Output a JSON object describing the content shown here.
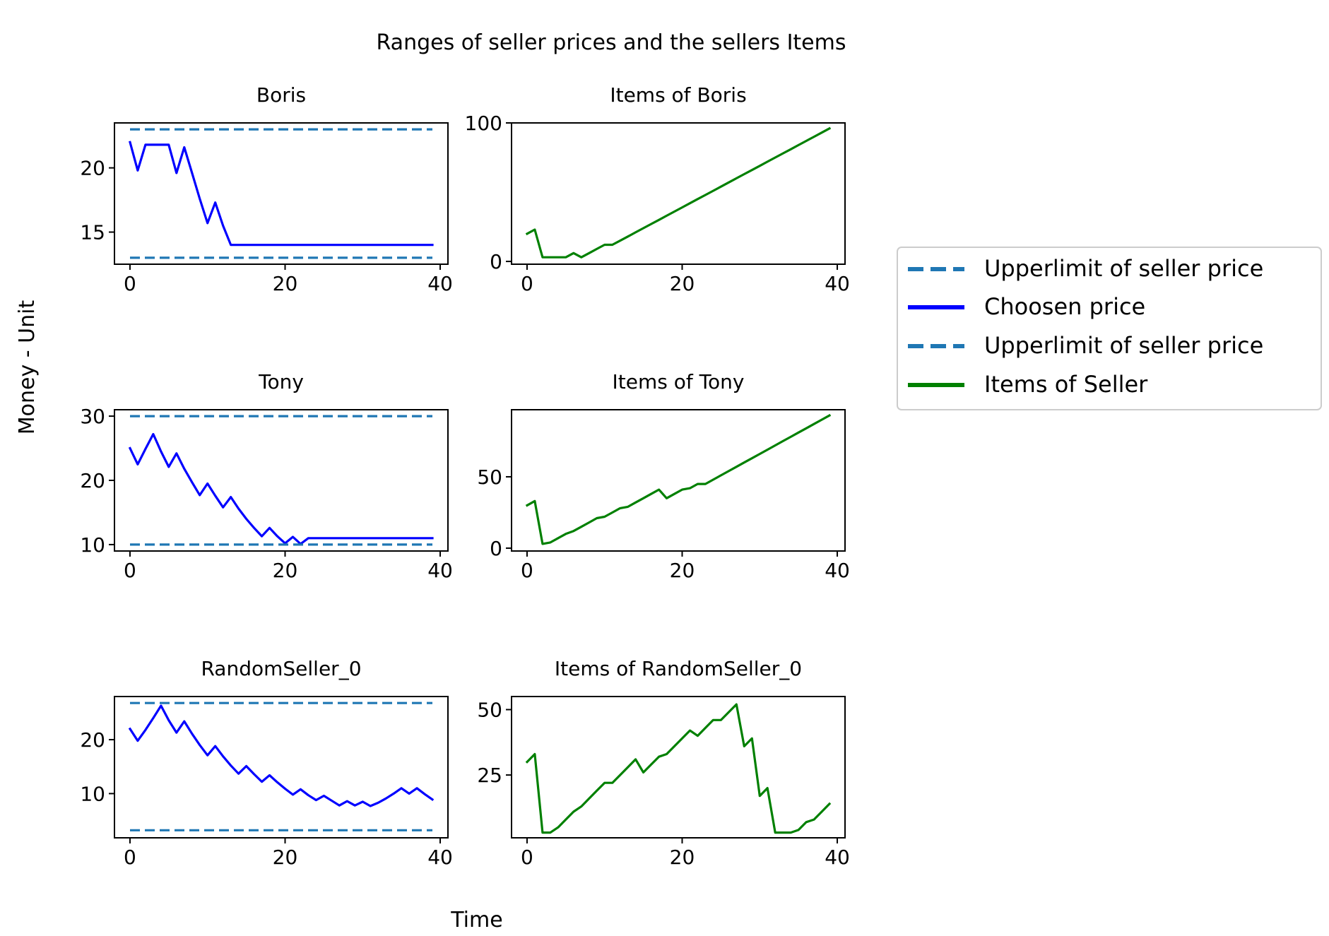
{
  "figure": {
    "title": "Ranges of seller prices and the sellers Items",
    "xlabel": "Time",
    "ylabel": "Money - Unit"
  },
  "legend": {
    "placement": "right",
    "entries": [
      {
        "label": "Upperlimit of seller price",
        "color": "#1f77b4",
        "style": "dashed"
      },
      {
        "label": "Choosen price",
        "color": "#0000ff",
        "style": "solid"
      },
      {
        "label": "Upperlimit of seller price",
        "color": "#1f77b4",
        "style": "dashed"
      },
      {
        "label": "Items of Seller",
        "color": "#008000",
        "style": "solid"
      }
    ]
  },
  "chart_data": [
    {
      "type": "line",
      "title": "Boris",
      "xlim": [
        -2,
        41
      ],
      "ylim": [
        12.5,
        23.5
      ],
      "xticks": [
        0,
        20,
        40
      ],
      "yticks": [
        15,
        20
      ],
      "series": [
        {
          "color": "#1f77b4",
          "dashed": true,
          "x": [
            0,
            39
          ],
          "y": [
            23,
            23
          ]
        },
        {
          "color": "#0000ff",
          "dashed": false,
          "x": [
            0,
            1,
            2,
            3,
            4,
            5,
            6,
            7,
            8,
            9,
            10,
            11,
            12,
            13,
            14,
            15,
            16,
            17,
            18,
            19,
            20,
            21,
            22,
            23,
            24,
            25,
            26,
            27,
            28,
            29,
            30,
            31,
            32,
            33,
            34,
            35,
            36,
            37,
            38,
            39
          ],
          "y": [
            22,
            19.8,
            21.8,
            21.8,
            21.8,
            21.8,
            19.6,
            21.6,
            19.6,
            17.6,
            15.7,
            17.3,
            15.5,
            14,
            14,
            14,
            14,
            14,
            14,
            14,
            14,
            14,
            14,
            14,
            14,
            14,
            14,
            14,
            14,
            14,
            14,
            14,
            14,
            14,
            14,
            14,
            14,
            14,
            14,
            14
          ]
        },
        {
          "color": "#1f77b4",
          "dashed": true,
          "x": [
            0,
            39
          ],
          "y": [
            13,
            13
          ]
        }
      ]
    },
    {
      "type": "line",
      "title": "Items of Boris",
      "xlim": [
        -2,
        41
      ],
      "ylim": [
        -2,
        100
      ],
      "xticks": [
        0,
        20,
        40
      ],
      "yticks": [
        0,
        100
      ],
      "series": [
        {
          "color": "#008000",
          "dashed": false,
          "x": [
            0,
            1,
            2,
            3,
            4,
            5,
            6,
            7,
            8,
            9,
            10,
            11,
            12,
            13,
            14,
            15,
            16,
            17,
            18,
            19,
            20,
            21,
            22,
            23,
            24,
            25,
            26,
            27,
            28,
            29,
            30,
            31,
            32,
            33,
            34,
            35,
            36,
            37,
            38,
            39
          ],
          "y": [
            20,
            23,
            3,
            3,
            3,
            3,
            6,
            3,
            6,
            9,
            12,
            12,
            15,
            18,
            21,
            24,
            27,
            30,
            33,
            36,
            39,
            42,
            45,
            48,
            51,
            54,
            57,
            60,
            63,
            66,
            69,
            72,
            75,
            78,
            81,
            84,
            87,
            90,
            93,
            96
          ]
        }
      ]
    },
    {
      "type": "line",
      "title": "Tony",
      "xlim": [
        -2,
        41
      ],
      "ylim": [
        9,
        31
      ],
      "xticks": [
        0,
        20,
        40
      ],
      "yticks": [
        10,
        20,
        30
      ],
      "series": [
        {
          "color": "#1f77b4",
          "dashed": true,
          "x": [
            0,
            39
          ],
          "y": [
            30,
            30
          ]
        },
        {
          "color": "#0000ff",
          "dashed": false,
          "x": [
            0,
            1,
            2,
            3,
            4,
            5,
            6,
            7,
            8,
            9,
            10,
            11,
            12,
            13,
            14,
            15,
            16,
            17,
            18,
            19,
            20,
            21,
            22,
            23,
            24,
            25,
            26,
            27,
            28,
            29,
            30,
            31,
            32,
            33,
            34,
            35,
            36,
            37,
            38,
            39
          ],
          "y": [
            25,
            22.5,
            24.9,
            27.2,
            24.5,
            22.1,
            24.2,
            21.8,
            19.7,
            17.7,
            19.5,
            17.6,
            15.8,
            17.4,
            15.6,
            14,
            12.6,
            11.3,
            12.6,
            11.3,
            10.2,
            11.2,
            10.1,
            11,
            11,
            11,
            11,
            11,
            11,
            11,
            11,
            11,
            11,
            11,
            11,
            11,
            11,
            11,
            11,
            11
          ]
        },
        {
          "color": "#1f77b4",
          "dashed": true,
          "x": [
            0,
            39
          ],
          "y": [
            10,
            10
          ]
        }
      ]
    },
    {
      "type": "line",
      "title": "Items of Tony",
      "xlim": [
        -2,
        41
      ],
      "ylim": [
        -2,
        97
      ],
      "xticks": [
        0,
        20,
        40
      ],
      "yticks": [
        0,
        50
      ],
      "series": [
        {
          "color": "#008000",
          "dashed": false,
          "x": [
            0,
            1,
            2,
            3,
            4,
            5,
            6,
            7,
            8,
            9,
            10,
            11,
            12,
            13,
            14,
            15,
            16,
            17,
            18,
            19,
            20,
            21,
            22,
            23,
            24,
            25,
            26,
            27,
            28,
            29,
            30,
            31,
            32,
            33,
            34,
            35,
            36,
            37,
            38,
            39
          ],
          "y": [
            30,
            33,
            3,
            4,
            7,
            10,
            12,
            15,
            18,
            21,
            22,
            25,
            28,
            29,
            32,
            35,
            38,
            41,
            35,
            38,
            41,
            42,
            45,
            45,
            48,
            51,
            54,
            57,
            60,
            63,
            66,
            69,
            72,
            75,
            78,
            81,
            84,
            87,
            90,
            93
          ]
        }
      ]
    },
    {
      "type": "line",
      "title": "RandomSeller_0",
      "xlim": [
        -2,
        41
      ],
      "ylim": [
        1.8,
        28
      ],
      "xticks": [
        0,
        20,
        40
      ],
      "yticks": [
        10,
        20
      ],
      "series": [
        {
          "color": "#1f77b4",
          "dashed": true,
          "x": [
            0,
            39
          ],
          "y": [
            26.8,
            26.8
          ]
        },
        {
          "color": "#0000ff",
          "dashed": false,
          "x": [
            0,
            1,
            2,
            3,
            4,
            5,
            6,
            7,
            8,
            9,
            10,
            11,
            12,
            13,
            14,
            15,
            16,
            17,
            18,
            19,
            20,
            21,
            22,
            23,
            24,
            25,
            26,
            27,
            28,
            29,
            30,
            31,
            32,
            33,
            34,
            35,
            36,
            37,
            38,
            39
          ],
          "y": [
            22,
            19.8,
            21.8,
            24,
            26.3,
            23.6,
            21.3,
            23.4,
            21.1,
            19,
            17.1,
            18.8,
            16.9,
            15.2,
            13.7,
            15.1,
            13.6,
            12.2,
            13.4,
            12.1,
            10.9,
            9.8,
            10.8,
            9.7,
            8.8,
            9.6,
            8.7,
            7.8,
            8.6,
            7.8,
            8.5,
            7.7,
            8.3,
            9.1,
            10,
            11,
            10,
            11,
            9.9,
            8.9
          ]
        },
        {
          "color": "#1f77b4",
          "dashed": true,
          "x": [
            0,
            39
          ],
          "y": [
            3.2,
            3.2
          ]
        }
      ]
    },
    {
      "type": "line",
      "title": "Items of RandomSeller_0",
      "xlim": [
        -2,
        41
      ],
      "ylim": [
        1,
        55
      ],
      "xticks": [
        0,
        20,
        40
      ],
      "yticks": [
        25,
        50
      ],
      "series": [
        {
          "color": "#008000",
          "dashed": false,
          "x": [
            0,
            1,
            2,
            3,
            4,
            5,
            6,
            7,
            8,
            9,
            10,
            11,
            12,
            13,
            14,
            15,
            16,
            17,
            18,
            19,
            20,
            21,
            22,
            23,
            24,
            25,
            26,
            27,
            28,
            29,
            30,
            31,
            32,
            33,
            34,
            35,
            36,
            37,
            38,
            39
          ],
          "y": [
            30,
            33,
            3,
            3,
            5,
            8,
            11,
            13,
            16,
            19,
            22,
            22,
            25,
            28,
            31,
            26,
            29,
            32,
            33,
            36,
            39,
            42,
            40,
            43,
            46,
            46,
            49,
            52,
            36,
            39,
            17,
            20,
            3,
            3,
            3,
            4,
            7,
            8,
            11,
            14
          ]
        }
      ]
    }
  ]
}
